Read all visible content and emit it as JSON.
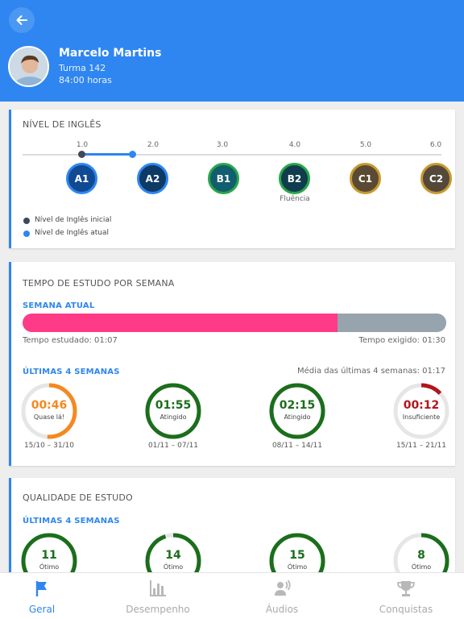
{
  "profile": {
    "name": "Marcelo Martins",
    "class_label": "Turma 142",
    "hours": "84:00 horas"
  },
  "english_level": {
    "title": "NÍVEL DE INGLÊS",
    "initial_value": 1.0,
    "current_value": 2.0,
    "ticks": [
      "1.0",
      "2.0",
      "3.0",
      "4.0",
      "5.0",
      "6.0"
    ],
    "levels": [
      {
        "code": "A1",
        "color": "#0f4a93"
      },
      {
        "code": "A2",
        "color": "#0e3a66"
      },
      {
        "code": "B1",
        "color": "#115e6e"
      },
      {
        "code": "B2",
        "color": "#0f3d4e"
      },
      {
        "code": "C1",
        "color": "#5a4a33"
      },
      {
        "code": "C2",
        "color": "#54483a"
      }
    ],
    "fluency_label": "Fluência",
    "legend_initial": "Nível de Inglês inicial",
    "legend_current": "Nível de Inglês atual"
  },
  "study_time": {
    "title": "TEMPO DE ESTUDO POR SEMANA",
    "current_week_label": "SEMANA ATUAL",
    "studied_text": "Tempo estudado: 01:07",
    "required_text": "Tempo exigido: 01:30",
    "progress_fraction": 0.744,
    "last_weeks_label": "ÚLTIMAS 4 SEMANAS",
    "average_text": "Média das últimas 4 semanas: 01:17",
    "weeks": [
      {
        "value": "00:46",
        "status": "Quase lá!",
        "range": "15/10 – 31/10",
        "fraction": 0.51,
        "color": "#f5891f"
      },
      {
        "value": "01:55",
        "status": "Atingido",
        "range": "01/11 – 07/11",
        "fraction": 1.0,
        "color": "#1b6e1b"
      },
      {
        "value": "02:15",
        "status": "Atingido",
        "range": "08/11 – 14/11",
        "fraction": 1.0,
        "color": "#1b6e1b"
      },
      {
        "value": "00:12",
        "status": "Insuficiente",
        "range": "15/11 – 21/11",
        "fraction": 0.13,
        "color": "#b3141c"
      }
    ]
  },
  "study_quality": {
    "title": "QUALIDADE DE ESTUDO",
    "last_weeks_label": "ÚLTIMAS 4 SEMANAS",
    "weeks": [
      {
        "value": "11",
        "status": "Ótimo",
        "fraction": 1.0,
        "color": "#1b6e1b"
      },
      {
        "value": "14",
        "status": "Ótimo",
        "fraction": 0.95,
        "color": "#1b6e1b"
      },
      {
        "value": "15",
        "status": "Ótimo",
        "fraction": 1.0,
        "color": "#1b6e1b"
      },
      {
        "value": "8",
        "status": "Ótimo",
        "fraction": 0.5,
        "color": "#1b6e1b"
      }
    ]
  },
  "nav": {
    "items": [
      {
        "label": "Geral",
        "icon": "flag-icon",
        "active": true
      },
      {
        "label": "Desempenho",
        "icon": "bar-chart-icon",
        "active": false
      },
      {
        "label": "Áudios",
        "icon": "speaker-icon",
        "active": false
      },
      {
        "label": "Conquistas",
        "icon": "trophy-icon",
        "active": false
      }
    ]
  },
  "colors": {
    "primary": "#2f86f0",
    "pink": "#ff3b88",
    "gray_bar": "#97a3ad"
  }
}
